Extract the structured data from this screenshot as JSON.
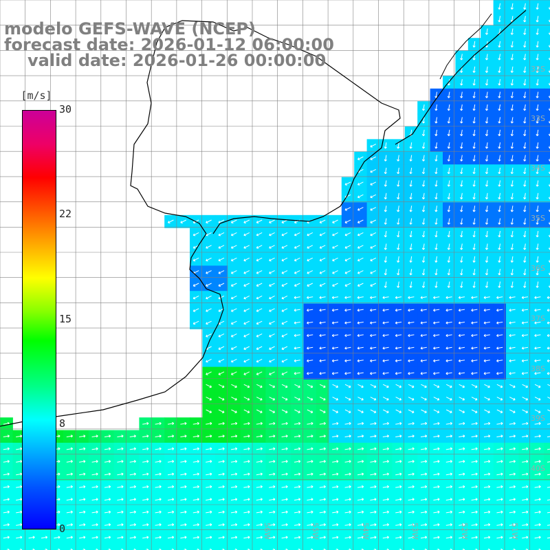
{
  "title": {
    "line1": "modelo GEFS-WAVE (NCEP)",
    "line2": "forecast date: 2026-01-12 06:00:00",
    "line3": "valid date: 2026-01-26 00:00:00"
  },
  "colorbar": {
    "unit": "[m/s]",
    "ticks": [
      "30",
      "22",
      "15",
      "8",
      "0"
    ],
    "stops": [
      "#0000ff",
      "#00aaff",
      "#00ffff",
      "#00ff00",
      "#ffff00",
      "#ff5500",
      "#cc0099"
    ]
  },
  "lat_labels": [
    "32S",
    "33S",
    "34S",
    "35S",
    "36S",
    "37S",
    "38S",
    "39S",
    "40S"
  ],
  "lon_labels": [
    "56W",
    "55W",
    "54W",
    "53W",
    "52W",
    "51W"
  ],
  "colors": {
    "land": "#ffffff",
    "coast": "#000000",
    "grid": "#808080",
    "arrow": "#ffffff"
  }
}
